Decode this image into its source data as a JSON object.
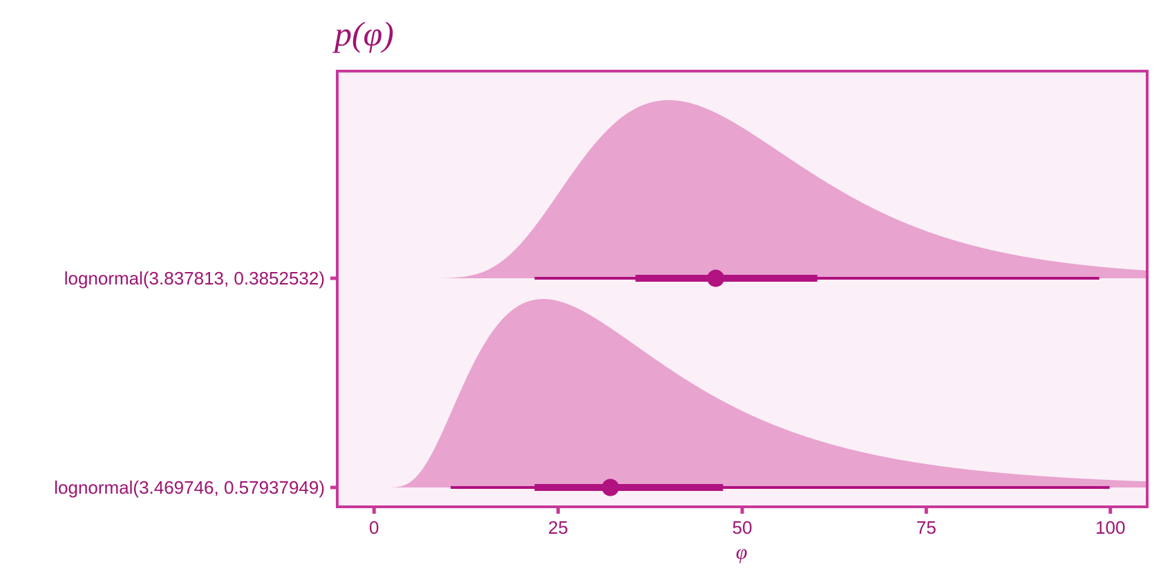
{
  "colors": {
    "panel_bg": "#FBF0F7",
    "border": "#C8399A",
    "density_fill": "#E8A3CF",
    "interval": "#B01280",
    "text": "#9E1472"
  },
  "chart_data": {
    "type": "area",
    "title": "p(φ)",
    "xlabel": "φ",
    "xlim": [
      -5,
      105
    ],
    "x_ticks": [
      {
        "value": 0,
        "label": "0"
      },
      {
        "value": 25,
        "label": "25"
      },
      {
        "value": 50,
        "label": "50"
      },
      {
        "value": 75,
        "label": "75"
      },
      {
        "value": 100,
        "label": "100"
      }
    ],
    "series": [
      {
        "name": "lognormal(3.837813, 0.3852532)",
        "meanlog": 3.837813,
        "sdlog": 0.3852532,
        "median": 46.4,
        "interval_66": [
          35.5,
          60.2
        ],
        "interval_95": [
          21.8,
          98.5
        ]
      },
      {
        "name": "lognormal(3.469746, 0.57937949)",
        "meanlog": 3.469746,
        "sdlog": 0.57937949,
        "median": 32.1,
        "interval_66": [
          21.8,
          47.4
        ],
        "interval_95": [
          10.4,
          99.9
        ]
      }
    ]
  }
}
